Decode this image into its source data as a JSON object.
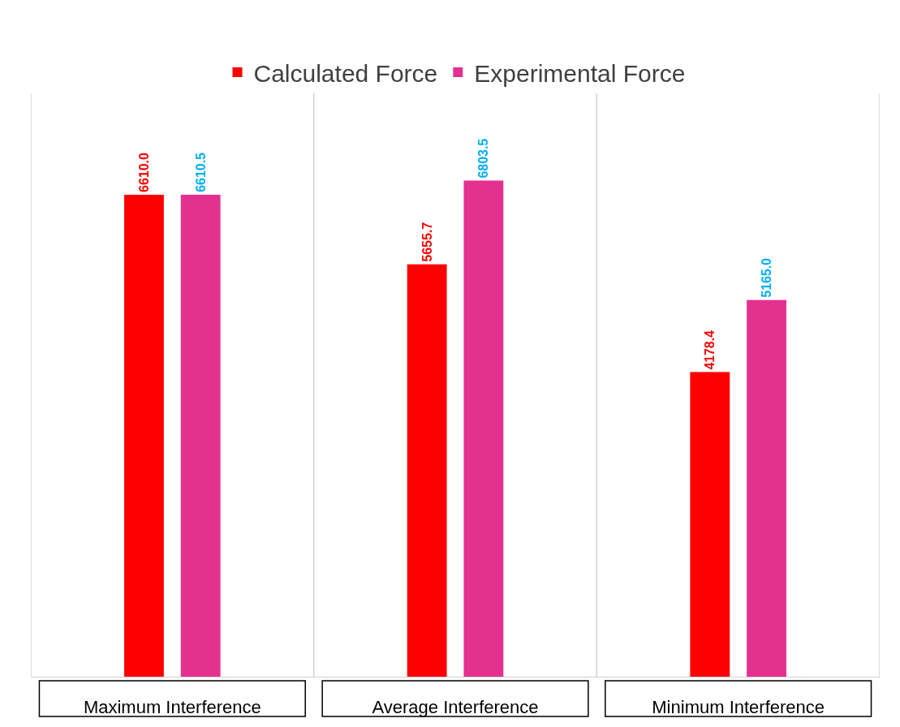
{
  "chart_data": {
    "type": "bar",
    "categories": [
      "Maximum Interference",
      "Average Interference",
      "Minimum Interference"
    ],
    "series": [
      {
        "name": "Calculated Force",
        "color": "#ff0000",
        "values": [
          6610.0,
          5655.7,
          4178.4
        ],
        "value_labels": [
          "6610.0",
          "5655.7",
          "4178.4"
        ]
      },
      {
        "name": "Experimental Force",
        "color": "#e4318f",
        "values": [
          6610.5,
          6803.5,
          5165.0
        ],
        "value_labels": [
          "6610.5",
          "6803.5",
          "5165.0"
        ]
      }
    ],
    "ylim": [
      0,
      8000
    ],
    "tick_labels": "x",
    "grid": "x",
    "legend": "top"
  }
}
